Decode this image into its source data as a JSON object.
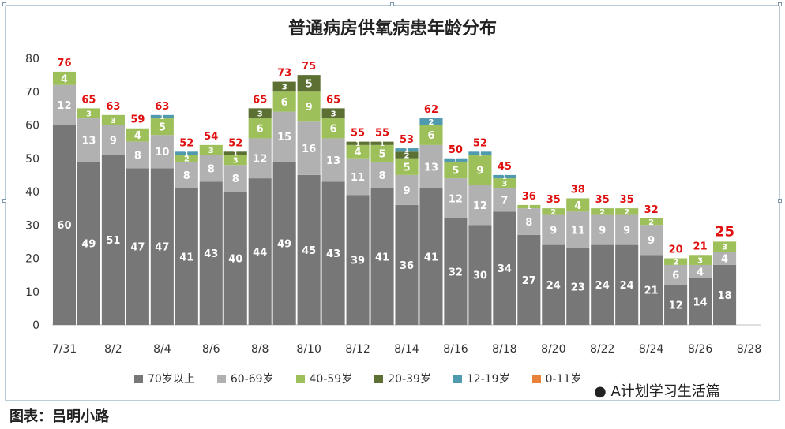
{
  "chart_data": {
    "type": "bar",
    "title": "普通病房供氧病患年龄分布",
    "categories": [
      "7/31",
      "8/1",
      "8/2",
      "8/3",
      "8/4",
      "8/5",
      "8/6",
      "8/7",
      "8/8",
      "8/9",
      "8/10",
      "8/11",
      "8/12",
      "8/13",
      "8/14",
      "8/15",
      "8/16",
      "8/17",
      "8/18",
      "8/19",
      "8/20",
      "8/21",
      "8/22",
      "8/23",
      "8/24",
      "8/25",
      "8/26",
      "8/27"
    ],
    "x_tick_labels": [
      "7/31",
      "8/2",
      "8/4",
      "8/6",
      "8/8",
      "8/10",
      "8/12",
      "8/14",
      "8/16",
      "8/18",
      "8/20",
      "8/22",
      "8/24",
      "8/26",
      "8/28"
    ],
    "ylim": [
      0,
      80
    ],
    "y_ticks": [
      0,
      10,
      20,
      30,
      40,
      50,
      60,
      70,
      80
    ],
    "stacked": true,
    "series": [
      {
        "name": "70岁以上",
        "color": "#777777",
        "text_color": "#ffffff",
        "values": [
          60,
          49,
          51,
          47,
          47,
          41,
          43,
          40,
          44,
          49,
          45,
          43,
          39,
          41,
          36,
          41,
          32,
          30,
          34,
          27,
          24,
          23,
          24,
          24,
          21,
          12,
          14,
          18
        ]
      },
      {
        "name": "60-69岁",
        "color": "#b1b1b1",
        "text_color": "#ffffff",
        "values": [
          12,
          13,
          9,
          8,
          10,
          8,
          8,
          8,
          12,
          15,
          16,
          13,
          11,
          8,
          9,
          13,
          12,
          12,
          7,
          8,
          9,
          11,
          9,
          9,
          9,
          6,
          4,
          4
        ]
      },
      {
        "name": "40-59岁",
        "color": "#9dc05b",
        "text_color": "#ffffff",
        "values": [
          4,
          3,
          3,
          4,
          5,
          2,
          3,
          3,
          6,
          6,
          9,
          6,
          4,
          5,
          5,
          6,
          5,
          9,
          3,
          1,
          2,
          4,
          2,
          2,
          2,
          2,
          3,
          3
        ]
      },
      {
        "name": "20-39岁",
        "color": "#5c7034",
        "text_color": "#ffffff",
        "values": [
          0,
          0,
          0,
          0,
          0,
          0,
          0,
          1,
          3,
          3,
          5,
          3,
          1,
          1,
          2,
          0,
          0,
          0,
          0,
          0,
          0,
          0,
          0,
          0,
          0,
          0,
          0,
          0
        ]
      },
      {
        "name": "12-19岁",
        "color": "#4f9aae",
        "text_color": "#ffffff",
        "values": [
          0,
          0,
          0,
          0,
          1,
          1,
          0,
          0,
          0,
          0,
          0,
          0,
          0,
          0,
          1,
          2,
          1,
          1,
          1,
          0,
          0,
          0,
          0,
          0,
          0,
          0,
          0,
          0
        ]
      },
      {
        "name": "0-11岁",
        "color": "#e8823a",
        "text_color": "#ffffff",
        "values": [
          0,
          0,
          0,
          0,
          0,
          0,
          0,
          0,
          0,
          0,
          0,
          0,
          0,
          0,
          0,
          0,
          0,
          0,
          0,
          0,
          0,
          0,
          0,
          0,
          0,
          0,
          0,
          0
        ]
      }
    ],
    "totals": [
      76,
      65,
      63,
      59,
      63,
      52,
      54,
      52,
      65,
      73,
      75,
      65,
      55,
      55,
      53,
      62,
      50,
      52,
      45,
      36,
      35,
      38,
      35,
      35,
      32,
      20,
      21,
      25
    ],
    "total_label_color": "#e01010",
    "legend_position": "bottom",
    "grid": false
  },
  "footer": {
    "left_text": "图表：吕明小路",
    "right_text": "A计划学习生活篇"
  }
}
